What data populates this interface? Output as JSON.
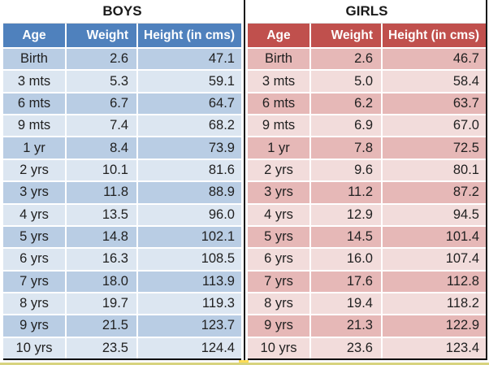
{
  "colors": {
    "boys_header": "#4f81bd",
    "boys_row_dark": "#b9cde4",
    "boys_row_light": "#dce6f1",
    "girls_header": "#c0504d",
    "girls_row_dark": "#e6b8b7",
    "girls_row_light": "#f2dcdb",
    "header_text": "#ffffff",
    "divider": "#1a1a1a",
    "bottom_stripe": "#d7d37e"
  },
  "chart_data": [
    {
      "type": "table",
      "title": "BOYS",
      "columns": [
        "Age",
        "Weight",
        "Height (in cms)"
      ],
      "rows": [
        [
          "Birth",
          "2.6",
          "47.1"
        ],
        [
          "3 mts",
          "5.3",
          "59.1"
        ],
        [
          "6 mts",
          "6.7",
          "64.7"
        ],
        [
          "9 mts",
          "7.4",
          "68.2"
        ],
        [
          "1 yr",
          "8.4",
          "73.9"
        ],
        [
          "2 yrs",
          "10.1",
          "81.6"
        ],
        [
          "3 yrs",
          "11.8",
          "88.9"
        ],
        [
          "4 yrs",
          "13.5",
          "96.0"
        ],
        [
          "5 yrs",
          "14.8",
          "102.1"
        ],
        [
          "6 yrs",
          "16.3",
          "108.5"
        ],
        [
          "7 yrs",
          "18.0",
          "113.9"
        ],
        [
          "8 yrs",
          "19.7",
          "119.3"
        ],
        [
          "9 yrs",
          "21.5",
          "123.7"
        ],
        [
          "10 yrs",
          "23.5",
          "124.4"
        ]
      ]
    },
    {
      "type": "table",
      "title": "GIRLS",
      "columns": [
        "Age",
        "Weight",
        "Height (in cms)"
      ],
      "rows": [
        [
          "Birth",
          "2.6",
          "46.7"
        ],
        [
          "3 mts",
          "5.0",
          "58.4"
        ],
        [
          "6 mts",
          "6.2",
          "63.7"
        ],
        [
          "9 mts",
          "6.9",
          "67.0"
        ],
        [
          "1 yr",
          "7.8",
          "72.5"
        ],
        [
          "2 yrs",
          "9.6",
          "80.1"
        ],
        [
          "3 yrs",
          "11.2",
          "87.2"
        ],
        [
          "4 yrs",
          "12.9",
          "94.5"
        ],
        [
          "5 yrs",
          "14.5",
          "101.4"
        ],
        [
          "6 yrs",
          "16.0",
          "107.4"
        ],
        [
          "7 yrs",
          "17.6",
          "112.8"
        ],
        [
          "8 yrs",
          "19.4",
          "118.2"
        ],
        [
          "9 yrs",
          "21.3",
          "122.9"
        ],
        [
          "10 yrs",
          "23.6",
          "123.4"
        ]
      ]
    }
  ]
}
